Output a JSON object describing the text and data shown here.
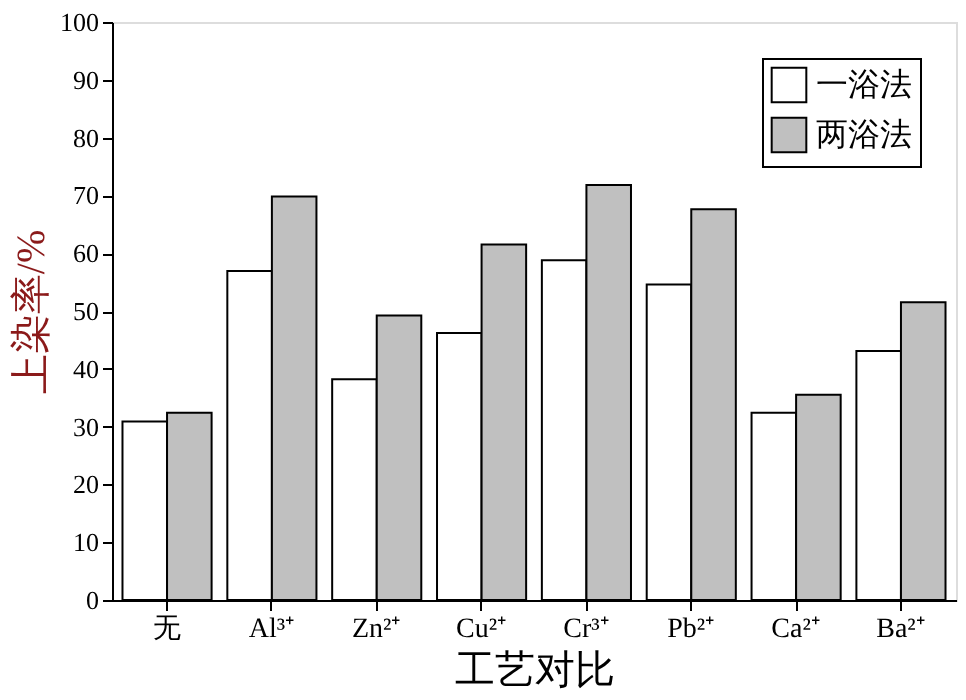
{
  "chart_data": {
    "type": "bar",
    "xlabel": "工艺对比",
    "ylabel": "上染率/%",
    "categories": [
      "无",
      "Al³⁺",
      "Zn²⁺",
      "Cu²⁺",
      "Cr³⁺",
      "Pb²⁺",
      "Ca²⁺",
      "Ba²⁺"
    ],
    "series": [
      {
        "name": "一浴法",
        "color": "#ffffff",
        "values": [
          30.9,
          56.9,
          38.2,
          46.2,
          58.8,
          54.6,
          32.4,
          43.1
        ]
      },
      {
        "name": "两浴法",
        "color": "#c0c0c0",
        "values": [
          32.4,
          69.8,
          49.2,
          61.5,
          71.8,
          67.6,
          35.5,
          51.5
        ]
      }
    ],
    "ylim": [
      0,
      100
    ],
    "yticks": [
      0,
      10,
      20,
      30,
      40,
      50,
      60,
      70,
      80,
      90,
      100
    ],
    "grid": false,
    "legend": "top right"
  }
}
